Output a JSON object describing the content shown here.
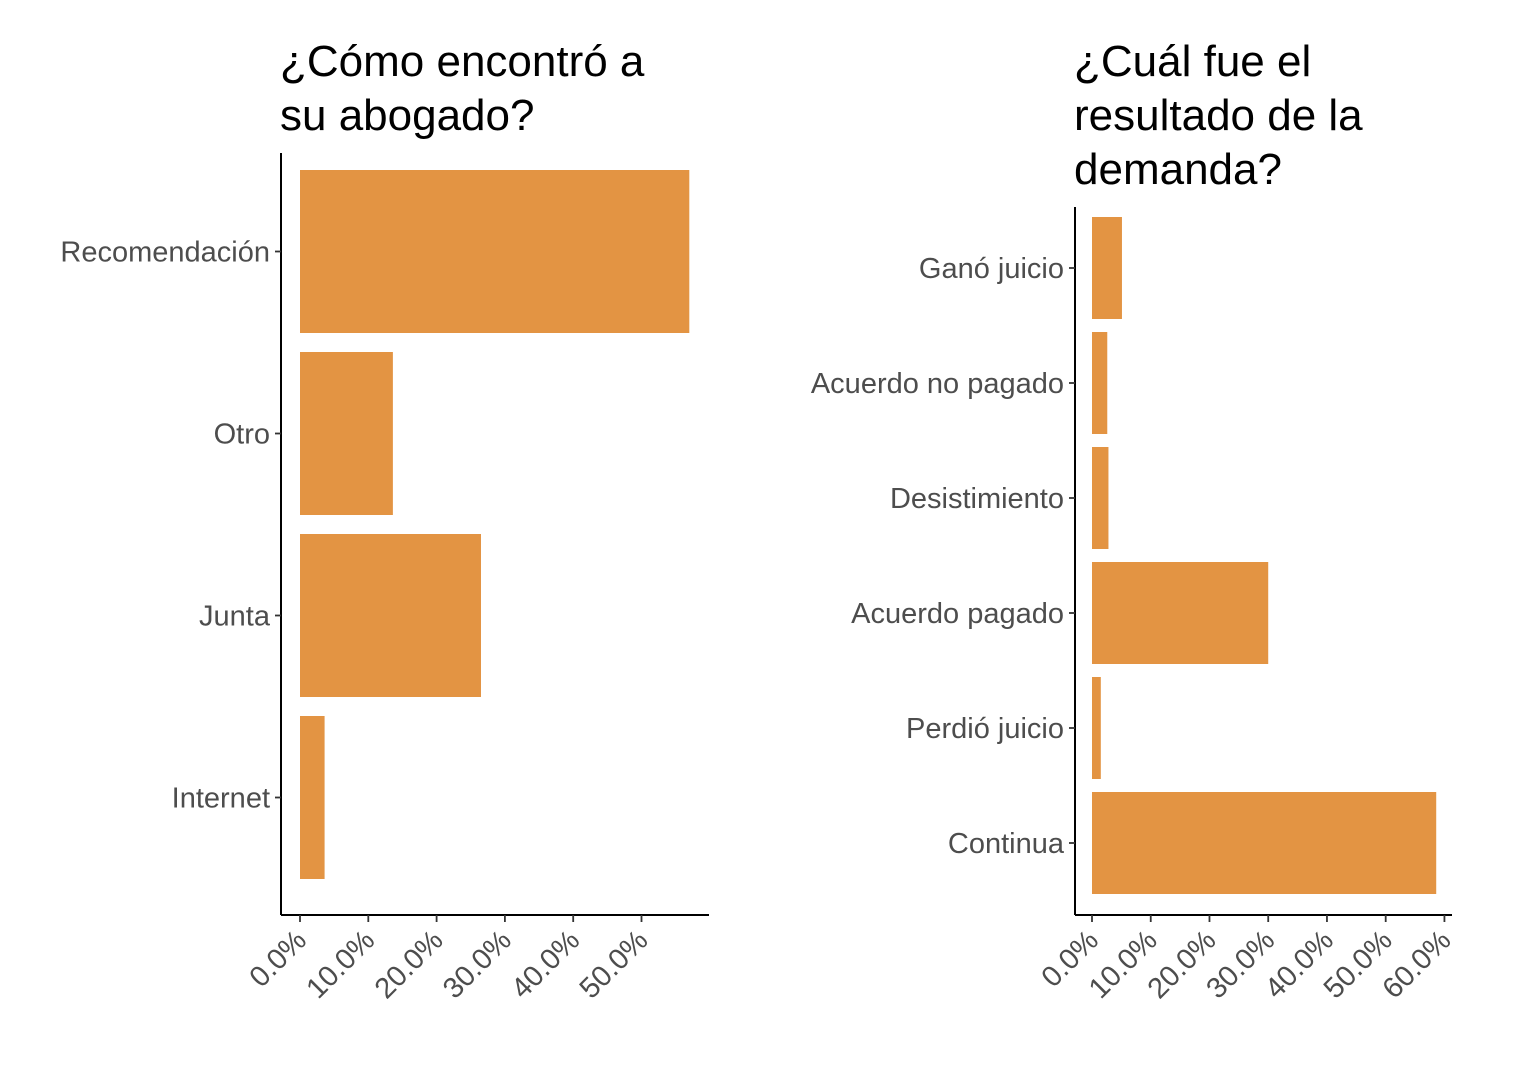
{
  "colors": {
    "bar": "#E39443",
    "axis": "#000000",
    "label": "#4D4D4D"
  },
  "chart_data": [
    {
      "type": "bar",
      "orientation": "horizontal",
      "title": "¿Cómo encontró a su abogado?",
      "title_lines": [
        "¿Cómo encontró a",
        "su abogado?"
      ],
      "categories": [
        "Recomendación",
        "Otro",
        "Junta",
        "Internet"
      ],
      "values": [
        57.0,
        13.6,
        26.5,
        3.6
      ],
      "xlim": [
        0,
        60
      ],
      "xticks": [
        0,
        10,
        20,
        30,
        40,
        50
      ],
      "xtick_labels": [
        "0.0%",
        "10.0%",
        "20.0%",
        "30.0%",
        "40.0%",
        "50.0%"
      ],
      "grid": false
    },
    {
      "type": "bar",
      "orientation": "horizontal",
      "title": "¿Cuál fue el resultado de la demanda?",
      "title_lines": [
        "¿Cuál fue el",
        "resultado de la",
        "demanda?"
      ],
      "categories": [
        "Ganó juicio",
        "Acuerdo no pagado",
        "Desistimiento",
        "Acuerdo pagado",
        "Perdió juicio",
        "Continua"
      ],
      "values": [
        5.1,
        2.6,
        2.8,
        30.0,
        1.5,
        58.6
      ],
      "xlim": [
        0,
        61
      ],
      "xticks": [
        0,
        10,
        20,
        30,
        40,
        50,
        60
      ],
      "xtick_labels": [
        "0.0%",
        "10.0%",
        "20.0%",
        "30.0%",
        "40.0%",
        "50.0%",
        "60.0%"
      ],
      "grid": false
    }
  ]
}
